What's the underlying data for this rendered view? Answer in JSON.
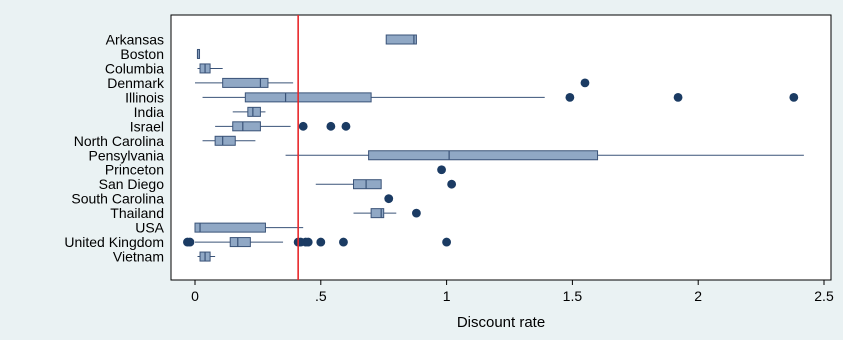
{
  "chart_data": {
    "type": "box",
    "xlabel": "Discount rate",
    "xlim": [
      -0.1,
      2.55
    ],
    "x_ticks": [
      {
        "value": 0,
        "label": "0"
      },
      {
        "value": 0.5,
        "label": ".5"
      },
      {
        "value": 1,
        "label": "1"
      },
      {
        "value": 1.5,
        "label": "1.5"
      },
      {
        "value": 2,
        "label": "2"
      },
      {
        "value": 2.5,
        "label": "2.5"
      }
    ],
    "reference_line": {
      "x": 0.41,
      "color": "#e8282b"
    },
    "colors": {
      "box_fill": "#90a8c5",
      "box_stroke": "#3a5378",
      "outlier": "#1b3b63",
      "background": "#eaf2f3"
    },
    "groups": [
      {
        "name": "Arkansas",
        "whisker_low": 0.76,
        "q1": 0.76,
        "median": 0.87,
        "q3": 0.88,
        "whisker_high": 0.88,
        "outliers": []
      },
      {
        "name": "Boston",
        "whisker_low": 0.01,
        "q1": 0.01,
        "median": 0.01,
        "q3": 0.01,
        "whisker_high": 0.01,
        "outliers": []
      },
      {
        "name": "Columbia",
        "whisker_low": 0.01,
        "q1": 0.02,
        "median": 0.04,
        "q3": 0.06,
        "whisker_high": 0.11,
        "outliers": []
      },
      {
        "name": "Denmark",
        "whisker_low": 0.0,
        "q1": 0.11,
        "median": 0.26,
        "q3": 0.29,
        "whisker_high": 0.39,
        "outliers": [
          1.55
        ]
      },
      {
        "name": "Illinois",
        "whisker_low": 0.03,
        "q1": 0.2,
        "median": 0.36,
        "q3": 0.7,
        "whisker_high": 1.39,
        "outliers": [
          1.49,
          1.92,
          2.38
        ]
      },
      {
        "name": "India",
        "whisker_low": 0.15,
        "q1": 0.21,
        "median": 0.23,
        "q3": 0.26,
        "whisker_high": 0.28,
        "outliers": []
      },
      {
        "name": "Israel",
        "whisker_low": 0.08,
        "q1": 0.15,
        "median": 0.19,
        "q3": 0.26,
        "whisker_high": 0.38,
        "outliers": [
          0.43,
          0.54,
          0.6
        ]
      },
      {
        "name": "North Carolina",
        "whisker_low": 0.03,
        "q1": 0.08,
        "median": 0.11,
        "q3": 0.16,
        "whisker_high": 0.24,
        "outliers": []
      },
      {
        "name": "Pensylvania",
        "whisker_low": 0.36,
        "q1": 0.69,
        "median": 1.01,
        "q3": 1.6,
        "whisker_high": 2.42,
        "outliers": []
      },
      {
        "name": "Princeton",
        "whisker_low": null,
        "q1": null,
        "median": null,
        "q3": null,
        "whisker_high": null,
        "outliers": [
          0.98
        ]
      },
      {
        "name": "San Diego",
        "whisker_low": 0.48,
        "q1": 0.63,
        "median": 0.68,
        "q3": 0.74,
        "whisker_high": 0.74,
        "outliers": [
          1.02
        ]
      },
      {
        "name": "South Carolina",
        "whisker_low": null,
        "q1": null,
        "median": null,
        "q3": null,
        "whisker_high": null,
        "outliers": [
          0.77
        ]
      },
      {
        "name": "Thailand",
        "whisker_low": 0.63,
        "q1": 0.7,
        "median": 0.74,
        "q3": 0.75,
        "whisker_high": 0.8,
        "outliers": [
          0.88
        ]
      },
      {
        "name": "USA",
        "whisker_low": 0.0,
        "q1": 0.0,
        "median": 0.02,
        "q3": 0.28,
        "whisker_high": 0.43,
        "outliers": []
      },
      {
        "name": "United Kingdom",
        "whisker_low": 0.0,
        "q1": 0.14,
        "median": 0.17,
        "q3": 0.22,
        "whisker_high": 0.35,
        "outliers": [
          -0.03,
          -0.02,
          0.41,
          0.42,
          0.44,
          0.45,
          0.5,
          0.59,
          1.0
        ]
      },
      {
        "name": "Vietnam",
        "whisker_low": 0.01,
        "q1": 0.02,
        "median": 0.04,
        "q3": 0.06,
        "whisker_high": 0.08,
        "outliers": []
      }
    ]
  }
}
